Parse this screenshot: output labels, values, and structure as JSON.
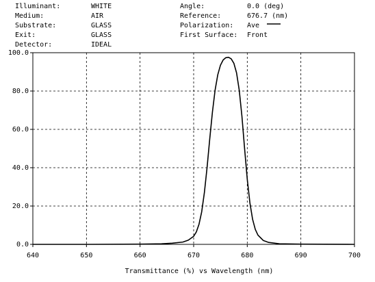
{
  "header": {
    "left": [
      {
        "label": "Illuminant:",
        "value": "WHITE"
      },
      {
        "label": "Medium:",
        "value": "AIR"
      },
      {
        "label": "Substrate:",
        "value": "GLASS"
      },
      {
        "label": "Exit:",
        "value": "GLASS"
      },
      {
        "label": "Detector:",
        "value": "IDEAL"
      }
    ],
    "right": [
      {
        "label": "Angle:",
        "value": "0.0 (deg)"
      },
      {
        "label": "Reference:",
        "value": "676.7 (nm)"
      },
      {
        "label": "Polarization:",
        "value": "Ave"
      },
      {
        "label": "First Surface:",
        "value": "Front"
      }
    ]
  },
  "chart_data": {
    "type": "line",
    "xlabel": "Transmittance (%)  vs  Wavelength (nm)",
    "ylabel": "",
    "xlim": [
      640,
      700
    ],
    "ylim": [
      0,
      100
    ],
    "x_ticks": [
      "640",
      "650",
      "660",
      "670",
      "680",
      "690",
      "700"
    ],
    "y_ticks": [
      "0.0",
      "20.0",
      "40.0",
      "60.0",
      "80.0",
      "100.0"
    ],
    "grid": true,
    "grid_style": "dashed",
    "line_color": "#000000",
    "series": [
      {
        "name": "Ave",
        "x": [
          640,
          650,
          660,
          664,
          666,
          668,
          669,
          670,
          670.5,
          671,
          671.5,
          672,
          672.5,
          673,
          673.5,
          674,
          674.5,
          675,
          675.5,
          676,
          676.5,
          677,
          677.5,
          678,
          678.5,
          679,
          679.5,
          680,
          680.5,
          681,
          681.5,
          682,
          683,
          684,
          686,
          690,
          700
        ],
        "y": [
          0,
          0,
          0.1,
          0.3,
          0.6,
          1.2,
          2.2,
          4.2,
          6.5,
          10.5,
          17,
          27,
          40,
          55,
          69,
          80.5,
          88.5,
          93.5,
          96.2,
          97.4,
          97.6,
          96.8,
          94.5,
          89.5,
          80.5,
          67,
          50,
          34,
          21.5,
          13,
          7.8,
          4.8,
          2,
          1,
          0.3,
          0.1,
          0
        ]
      }
    ]
  }
}
